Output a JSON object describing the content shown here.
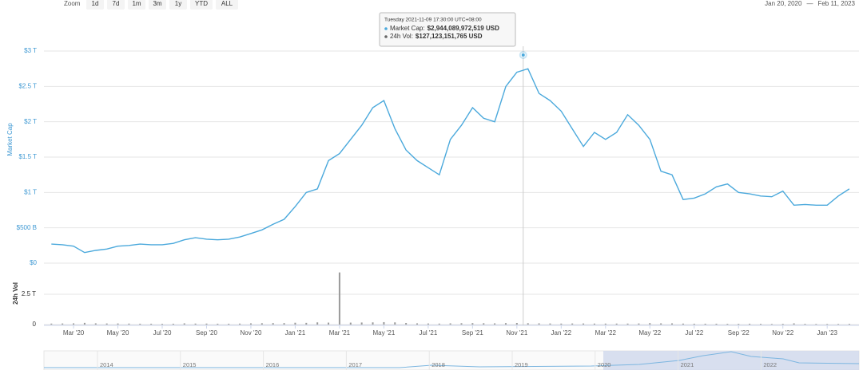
{
  "chart_data": {
    "type": "line",
    "zoom": {
      "label": "Zoom",
      "buttons": [
        "1d",
        "7d",
        "1m",
        "3m",
        "1y",
        "YTD",
        "ALL"
      ]
    },
    "date_range": {
      "from": "Jan 20, 2020",
      "separator": "—",
      "to": "Feb 11, 2023"
    },
    "ylabel": "Market Cap",
    "categories": [
      null,
      null,
      "Mar '20",
      null,
      null,
      null,
      "May '20",
      null,
      null,
      null,
      "Jul '20",
      null,
      null,
      null,
      "Sep '20",
      null,
      null,
      null,
      "Nov '20",
      null,
      null,
      null,
      "Jan '21",
      null,
      null,
      null,
      "Mar '21",
      null,
      null,
      null,
      "May '21",
      null,
      null,
      null,
      "Jul '21",
      null,
      null,
      null,
      "Sep '21",
      null,
      null,
      null,
      "Nov '21",
      null,
      null,
      null,
      "Jan '22",
      null,
      null,
      null,
      "Mar '22",
      null,
      null,
      null,
      "May '22",
      null,
      null,
      null,
      "Jul '22",
      null,
      null,
      null,
      "Sep '22",
      null,
      null,
      null,
      "Nov '22",
      null,
      null,
      null,
      "Jan '23",
      null,
      null
    ],
    "series": [
      {
        "name": "Market Cap",
        "color": "#4ba9dc",
        "values": [
          0.27,
          0.26,
          0.24,
          0.15,
          0.18,
          0.2,
          0.24,
          0.25,
          0.27,
          0.26,
          0.26,
          0.28,
          0.33,
          0.36,
          0.34,
          0.33,
          0.34,
          0.37,
          0.42,
          0.47,
          0.55,
          0.62,
          0.8,
          1.0,
          1.05,
          1.45,
          1.55,
          1.75,
          1.95,
          2.2,
          2.3,
          1.9,
          1.6,
          1.45,
          1.35,
          1.25,
          1.75,
          1.95,
          2.2,
          2.05,
          2.0,
          2.5,
          2.7,
          2.75,
          2.4,
          2.3,
          2.15,
          1.9,
          1.65,
          1.85,
          1.75,
          1.85,
          2.1,
          1.95,
          1.75,
          1.3,
          1.25,
          0.9,
          0.92,
          0.98,
          1.08,
          1.12,
          1.0,
          0.98,
          0.95,
          0.94,
          1.02,
          0.82,
          0.83,
          0.82,
          0.82,
          0.95,
          1.05
        ]
      }
    ],
    "ylim": [
      0,
      3.5
    ],
    "yticks": [
      {
        "value": 0,
        "label": "$0"
      },
      {
        "value": 0.5,
        "label": "$500 B"
      },
      {
        "value": 1,
        "label": "$1 T"
      },
      {
        "value": 1.5,
        "label": "$1.5 T"
      },
      {
        "value": 2,
        "label": "$2 T"
      },
      {
        "value": 2.5,
        "label": "$2.5 T"
      },
      {
        "value": 3,
        "label": "$3 T"
      }
    ],
    "volume": {
      "ylabel": "24h Vol",
      "color": "#9a9a9a",
      "ylim": [
        0,
        5
      ],
      "yticks": [
        0,
        {
          "value": 2.5,
          "label": "2.5 T"
        }
      ],
      "values": [
        0.08,
        0.09,
        0.1,
        0.14,
        0.1,
        0.09,
        0.09,
        0.08,
        0.07,
        0.07,
        0.06,
        0.07,
        0.1,
        0.08,
        0.08,
        0.07,
        0.07,
        0.08,
        0.1,
        0.11,
        0.12,
        0.12,
        0.15,
        0.14,
        0.18,
        0.16,
        4.3,
        0.16,
        0.17,
        0.18,
        0.2,
        0.18,
        0.13,
        0.1,
        0.09,
        0.08,
        0.1,
        0.11,
        0.12,
        0.11,
        0.1,
        0.12,
        0.13,
        0.11,
        0.1,
        0.09,
        0.08,
        0.09,
        0.09,
        0.08,
        0.08,
        0.08,
        0.08,
        0.09,
        0.12,
        0.1,
        0.1,
        0.08,
        0.07,
        0.07,
        0.07,
        0.06,
        0.06,
        0.07,
        0.06,
        0.05,
        0.06,
        0.1,
        0.06,
        0.05,
        0.05,
        0.05,
        0.06
      ]
    },
    "tooltip": {
      "date": "Tuesday 2021-11-09 17:30:00 UTC+08:00",
      "items": [
        {
          "label": "Market Cap:",
          "value": {
            "value": 2.944089972519,
            "label": "$2,944,089,972,519 USD"
          }
        },
        {
          "label": "24h Vol:",
          "value": {
            "value": 0.127123151765,
            "label": "$127,123,151,765 USD"
          }
        }
      ]
    },
    "navigator_years": [
      "2014",
      "2015",
      "2016",
      "2017",
      "2018",
      "2019",
      "2020",
      "2021",
      "2022"
    ],
    "grid": true
  }
}
